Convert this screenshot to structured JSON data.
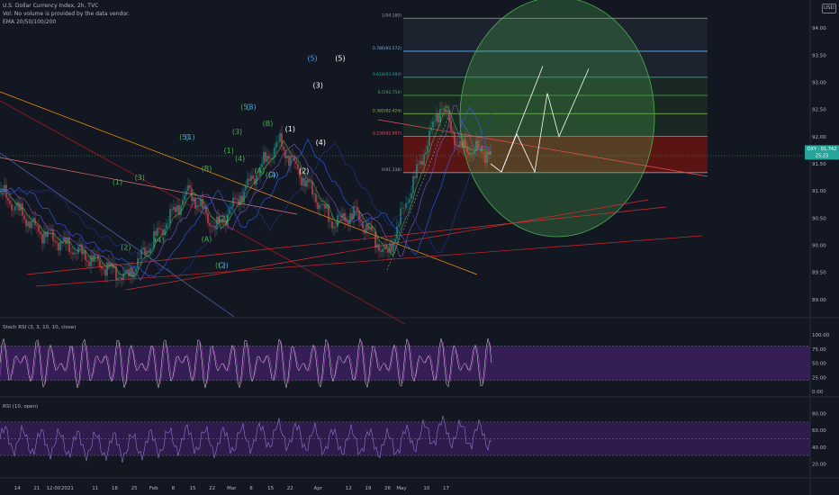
{
  "header": {
    "symbol_line": "U.S. Dollar Currency Index, 2h, TVC",
    "volume_note": "Vol: No volume is provided by the data vendor.",
    "ema_label": "EMA 20/50/100/200",
    "currency_badge": "USD"
  },
  "panes": {
    "stoch_title": "Stoch RSI (3, 3, 10, 10, close)",
    "rsi_title": "RSI (10, open)"
  },
  "price_badge": {
    "symbol": "DXY",
    "price": "91.742",
    "countdown": "25:23"
  },
  "colors": {
    "background": "#131722",
    "up": "#26a69a",
    "down": "#ef5350",
    "fib_red": "#b71c1c",
    "circle": "#4caf50",
    "osc_band": "#3a1f5c",
    "osc_line": "#9575cd"
  },
  "chart_data": [
    {
      "type": "candlestick",
      "title": "U.S. Dollar Currency Index, 2h, TVC",
      "x_tick_labels": [
        "14",
        "21",
        "12:00",
        "2021",
        "11",
        "18",
        "25",
        "Feb",
        "8",
        "15",
        "22",
        "Mar",
        "8",
        "15",
        "22",
        "Apr",
        "12",
        "19",
        "26",
        "May",
        "10",
        "17"
      ],
      "y_tick_labels": [
        "94.00",
        "93.50",
        "93.00",
        "92.50",
        "92.00",
        "91.50",
        "91.00",
        "90.50",
        "90.00",
        "89.50",
        "89.00"
      ],
      "ylim": [
        88.8,
        94.35
      ],
      "last_price": 91.742,
      "fib_levels": [
        {
          "label": "1(94.180)",
          "value": 94.18
        },
        {
          "label": "0.786(93.572)",
          "value": 93.572
        },
        {
          "label": "0.618(93.094)",
          "value": 93.094
        },
        {
          "label": "0.5(92.759)",
          "value": 92.759
        },
        {
          "label": "0.382(92.424)",
          "value": 92.424
        },
        {
          "label": "0.236(92.007)",
          "value": 92.007
        },
        {
          "label": "0(91.338)",
          "value": 91.338
        }
      ],
      "wave_labels": [
        {
          "text": "(1)",
          "x": "Jan 19",
          "y": 91.12,
          "color": "#4caf50"
        },
        {
          "text": "(2)",
          "x": "Jan 22",
          "y": 89.92,
          "color": "#4caf50"
        },
        {
          "text": "(3)",
          "x": "Jan 27",
          "y": 91.2,
          "color": "#4caf50"
        },
        {
          "text": "(4)",
          "x": "Feb 3",
          "y": 90.05,
          "color": "#4caf50"
        },
        {
          "text": "(5)",
          "x": "Feb 12",
          "y": 91.95,
          "color": "#4caf50"
        },
        {
          "text": "(1)",
          "x": "Feb 14",
          "y": 91.95,
          "color": "#42a5f5"
        },
        {
          "text": "(B)",
          "x": "Feb 20",
          "y": 91.37,
          "color": "#4caf50"
        },
        {
          "text": "(A)",
          "x": "Feb 20",
          "y": 90.07,
          "color": "#4caf50"
        },
        {
          "text": "(2)",
          "x": "Feb 26",
          "y": 90.45,
          "color": "#4caf50"
        },
        {
          "text": "(C)",
          "x": "Feb 25",
          "y": 89.59,
          "color": "#4caf50"
        },
        {
          "text": "(2)",
          "x": "Feb 26",
          "y": 89.59,
          "color": "#42a5f5"
        },
        {
          "text": "(1)",
          "x": "Feb 28",
          "y": 91.7,
          "color": "#4caf50"
        },
        {
          "text": "(3)",
          "x": "Mar 3",
          "y": 92.05,
          "color": "#4caf50"
        },
        {
          "text": "(5)",
          "x": "Mar 6",
          "y": 92.5,
          "color": "#4caf50"
        },
        {
          "text": "(3)",
          "x": "Mar 8",
          "y": 92.5,
          "color": "#42a5f5"
        },
        {
          "text": "(4)",
          "x": "Mar 4",
          "y": 91.55,
          "color": "#4caf50"
        },
        {
          "text": "(A)",
          "x": "Mar 11",
          "y": 91.33,
          "color": "#4caf50"
        },
        {
          "text": "(B)",
          "x": "Mar 14",
          "y": 92.2,
          "color": "#4caf50"
        },
        {
          "text": "(C)",
          "x": "Mar 15",
          "y": 91.25,
          "color": "#4caf50"
        },
        {
          "text": "(4)",
          "x": "Mar 16",
          "y": 91.25,
          "color": "#42a5f5"
        },
        {
          "text": "(1)",
          "x": "Mar 22",
          "y": 92.1,
          "color": "#ffffff"
        },
        {
          "text": "(2)",
          "x": "Mar 27",
          "y": 91.33,
          "color": "#ffffff"
        },
        {
          "text": "(3)",
          "x": "Apr 1",
          "y": 92.9,
          "color": "#ffffff"
        },
        {
          "text": "(4)",
          "x": "Apr 2",
          "y": 91.85,
          "color": "#ffffff"
        },
        {
          "text": "(5)",
          "x": "Mar 30",
          "y": 93.4,
          "color": "#42a5f5"
        },
        {
          "text": "(5)",
          "x": "Apr 9",
          "y": 93.4,
          "color": "#ffffff"
        }
      ]
    },
    {
      "type": "line",
      "title": "Stoch RSI (3, 3, 10, 10, close)",
      "y_tick_labels": [
        "100.00",
        "75.00",
        "50.00",
        "25.00",
        "0.00"
      ],
      "ylim": [
        0,
        100
      ],
      "band": [
        20,
        80
      ]
    },
    {
      "type": "line",
      "title": "RSI (10, open)",
      "y_tick_labels": [
        "80.00",
        "60.00",
        "40.00",
        "20.00"
      ],
      "ylim": [
        15,
        85
      ],
      "band": [
        30,
        70
      ]
    }
  ]
}
